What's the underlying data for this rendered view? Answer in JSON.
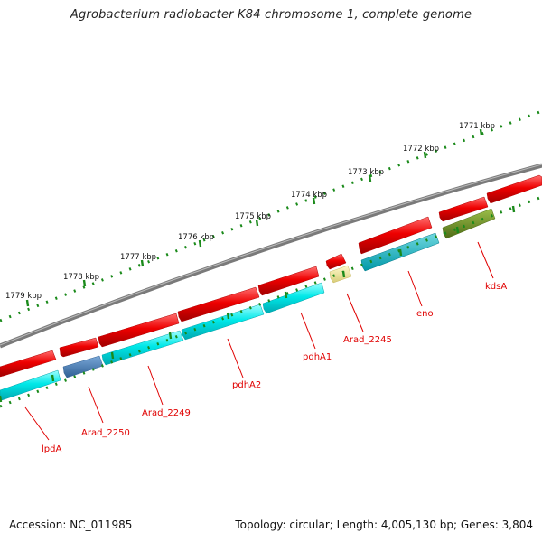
{
  "title": "Agrobacterium radiobacter K84 chromosome 1, complete genome",
  "footer": {
    "accession": "Accession: NC_011985",
    "stats": "Topology: circular; Length: 4,005,130 bp; Genes: 3,804"
  },
  "ruler_labels": [
    "1771 kbp",
    "1772 kbp",
    "1773 kbp",
    "1774 kbp",
    "1775 kbp",
    "1776 kbp",
    "1777 kbp",
    "1778 kbp",
    "1779 kbp"
  ],
  "gene_labels": [
    "kdsA",
    "eno",
    "Arad_2245",
    "pdhA1",
    "pdhA2",
    "Arad_2249",
    "Arad_2250",
    "lpdA"
  ],
  "colors": {
    "backbone": "#808080",
    "forward_gene": "#ee0000",
    "reverse_gene": "#00e0e0",
    "steelblue_gene": "#4a7fb5",
    "olive_gene": "#6b8e23",
    "pale_gene": "#f0e68c",
    "tick_outer": "#1a8a1a",
    "label": "#e00000"
  }
}
